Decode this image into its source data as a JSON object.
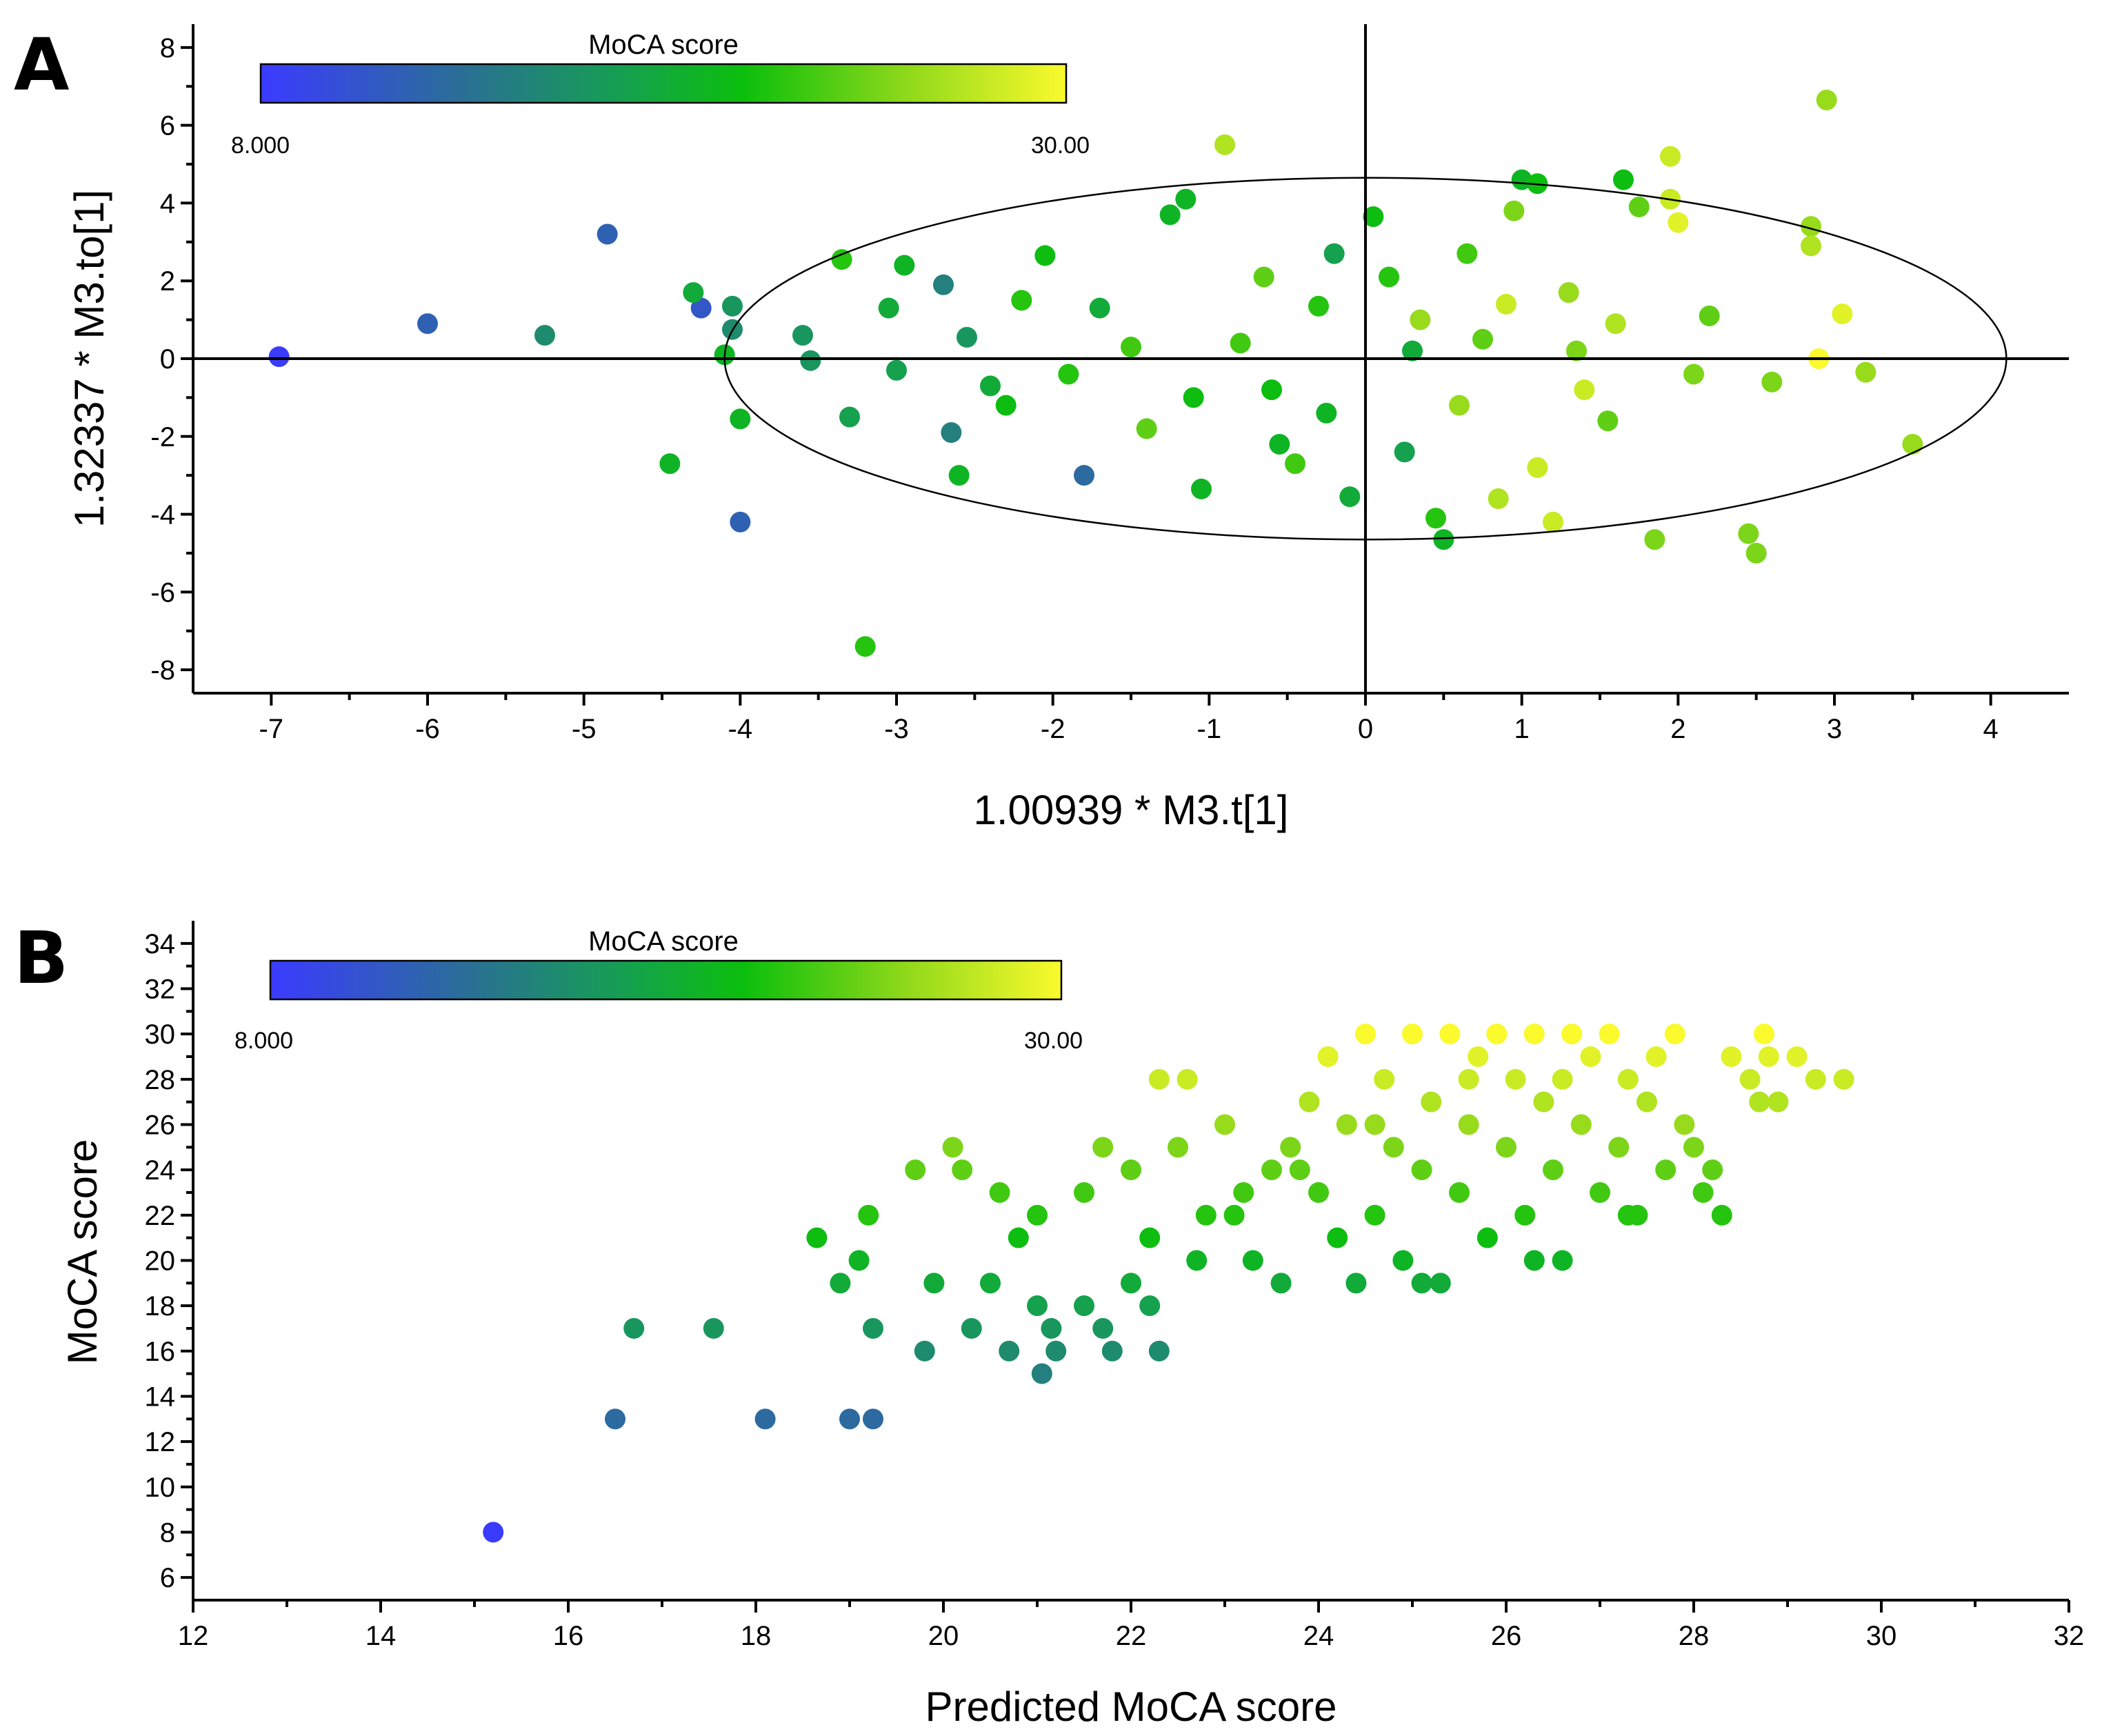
{
  "colors": {
    "low": "#3b3bff",
    "mid1": "#2a6f96",
    "mid2": "#15a050",
    "mid3": "#0cbf0c",
    "mid4": "#8ed81a",
    "high": "#fafa2c"
  },
  "chart_data": [
    {
      "panel": "A",
      "type": "scatter",
      "title": "",
      "xlabel": "1.00939 * M3.t[1]",
      "ylabel": "1.32337 * M3.to[1]",
      "xlim": [
        -7.5,
        4.5
      ],
      "ylim": [
        -8.6,
        8.6
      ],
      "xticks": [
        -7,
        -6,
        -5,
        -4,
        -3,
        -2,
        -1,
        0,
        1,
        2,
        3,
        4
      ],
      "yticks": [
        -8,
        -6,
        -4,
        -2,
        0,
        2,
        4,
        6,
        8
      ],
      "reference_lines": {
        "x": 0,
        "y": 0
      },
      "ellipse": {
        "cx": 0,
        "cy": 0,
        "rx": 4.1,
        "ry": 4.65
      },
      "colorbar": {
        "title": "MoCA score",
        "min_label": "8.000",
        "max_label": "30.00",
        "min": 8,
        "max": 30
      },
      "points": [
        {
          "x": -6.95,
          "y": 0.05,
          "c": 8
        },
        {
          "x": -6.0,
          "y": 0.9,
          "c": 12
        },
        {
          "x": -5.25,
          "y": 0.6,
          "c": 16
        },
        {
          "x": -4.85,
          "y": 3.2,
          "c": 12
        },
        {
          "x": -4.25,
          "y": 1.3,
          "c": 11
        },
        {
          "x": -4.3,
          "y": 1.7,
          "c": 19
        },
        {
          "x": -4.05,
          "y": 1.35,
          "c": 17
        },
        {
          "x": -4.05,
          "y": 0.75,
          "c": 16
        },
        {
          "x": -4.1,
          "y": 0.1,
          "c": 20
        },
        {
          "x": -4.0,
          "y": -1.55,
          "c": 20
        },
        {
          "x": -4.0,
          "y": -4.2,
          "c": 12
        },
        {
          "x": -4.45,
          "y": -2.7,
          "c": 20
        },
        {
          "x": -3.2,
          "y": -7.4,
          "c": 22
        },
        {
          "x": -3.6,
          "y": 0.6,
          "c": 17
        },
        {
          "x": -3.55,
          "y": -0.05,
          "c": 17
        },
        {
          "x": -3.35,
          "y": 2.55,
          "c": 22
        },
        {
          "x": -3.3,
          "y": -1.5,
          "c": 18
        },
        {
          "x": -3.05,
          "y": 1.3,
          "c": 19
        },
        {
          "x": -2.95,
          "y": 2.4,
          "c": 20
        },
        {
          "x": -2.7,
          "y": 1.9,
          "c": 15
        },
        {
          "x": -2.65,
          "y": -1.9,
          "c": 15
        },
        {
          "x": -2.6,
          "y": -3.0,
          "c": 20
        },
        {
          "x": -2.55,
          "y": 0.55,
          "c": 17
        },
        {
          "x": -2.4,
          "y": -0.7,
          "c": 19
        },
        {
          "x": -2.2,
          "y": 1.5,
          "c": 22
        },
        {
          "x": -2.05,
          "y": 2.65,
          "c": 21
        },
        {
          "x": -1.8,
          "y": -3.0,
          "c": 13
        },
        {
          "x": -1.7,
          "y": 1.3,
          "c": 19
        },
        {
          "x": -1.5,
          "y": 0.3,
          "c": 23
        },
        {
          "x": -1.25,
          "y": 3.7,
          "c": 20
        },
        {
          "x": -1.15,
          "y": 4.1,
          "c": 20
        },
        {
          "x": -1.1,
          "y": -1.0,
          "c": 21
        },
        {
          "x": -1.05,
          "y": -3.35,
          "c": 20
        },
        {
          "x": -0.9,
          "y": 5.5,
          "c": 27
        },
        {
          "x": -0.65,
          "y": 2.1,
          "c": 24
        },
        {
          "x": -0.55,
          "y": -2.2,
          "c": 20
        },
        {
          "x": -0.45,
          "y": -2.7,
          "c": 23
        },
        {
          "x": -0.3,
          "y": 1.35,
          "c": 22
        },
        {
          "x": -0.2,
          "y": 2.7,
          "c": 18
        },
        {
          "x": -0.1,
          "y": -3.55,
          "c": 19
        },
        {
          "x": 0.05,
          "y": 3.65,
          "c": 21
        },
        {
          "x": 0.15,
          "y": 2.1,
          "c": 22
        },
        {
          "x": 0.25,
          "y": -2.4,
          "c": 18
        },
        {
          "x": 0.35,
          "y": 1.0,
          "c": 26
        },
        {
          "x": 0.45,
          "y": -4.1,
          "c": 22
        },
        {
          "x": 0.5,
          "y": -4.65,
          "c": 20
        },
        {
          "x": 0.65,
          "y": 2.7,
          "c": 23
        },
        {
          "x": 0.75,
          "y": 0.5,
          "c": 24
        },
        {
          "x": 0.85,
          "y": -3.6,
          "c": 27
        },
        {
          "x": 0.95,
          "y": 3.8,
          "c": 25
        },
        {
          "x": 1.0,
          "y": 4.6,
          "c": 20
        },
        {
          "x": 1.1,
          "y": 4.5,
          "c": 21
        },
        {
          "x": 1.1,
          "y": -2.8,
          "c": 28
        },
        {
          "x": 1.2,
          "y": -4.2,
          "c": 28
        },
        {
          "x": 1.3,
          "y": 1.7,
          "c": 26
        },
        {
          "x": 1.35,
          "y": 0.2,
          "c": 25
        },
        {
          "x": 1.55,
          "y": -1.6,
          "c": 24
        },
        {
          "x": 1.65,
          "y": 4.6,
          "c": 21
        },
        {
          "x": 1.75,
          "y": 3.9,
          "c": 24
        },
        {
          "x": 1.85,
          "y": -4.65,
          "c": 25
        },
        {
          "x": 1.95,
          "y": 5.2,
          "c": 28
        },
        {
          "x": 1.95,
          "y": 4.1,
          "c": 28
        },
        {
          "x": 2.0,
          "y": 3.5,
          "c": 29
        },
        {
          "x": 2.1,
          "y": -0.4,
          "c": 25
        },
        {
          "x": 2.2,
          "y": 1.1,
          "c": 24
        },
        {
          "x": 2.45,
          "y": -4.5,
          "c": 25
        },
        {
          "x": 2.5,
          "y": -5.0,
          "c": 25
        },
        {
          "x": 2.6,
          "y": -0.6,
          "c": 25
        },
        {
          "x": 2.85,
          "y": 3.4,
          "c": 26
        },
        {
          "x": 2.85,
          "y": 2.9,
          "c": 27
        },
        {
          "x": 2.9,
          "y": 0.0,
          "c": 30
        },
        {
          "x": 2.95,
          "y": 6.65,
          "c": 26
        },
        {
          "x": 3.05,
          "y": 1.15,
          "c": 29
        },
        {
          "x": 3.2,
          "y": -0.35,
          "c": 26
        },
        {
          "x": 3.5,
          "y": -2.2,
          "c": 26
        },
        {
          "x": -0.8,
          "y": 0.4,
          "c": 23
        },
        {
          "x": -0.6,
          "y": -0.8,
          "c": 21
        },
        {
          "x": -1.9,
          "y": -0.4,
          "c": 22
        },
        {
          "x": -2.3,
          "y": -1.2,
          "c": 21
        },
        {
          "x": -1.4,
          "y": -1.8,
          "c": 24
        },
        {
          "x": 0.6,
          "y": -1.2,
          "c": 26
        },
        {
          "x": 0.9,
          "y": 1.4,
          "c": 28
        },
        {
          "x": 1.6,
          "y": 0.9,
          "c": 27
        },
        {
          "x": 1.4,
          "y": -0.8,
          "c": 28
        },
        {
          "x": 0.3,
          "y": 0.2,
          "c": 19
        },
        {
          "x": -0.25,
          "y": -1.4,
          "c": 20
        },
        {
          "x": -3.0,
          "y": -0.3,
          "c": 18
        }
      ]
    },
    {
      "panel": "B",
      "type": "scatter",
      "title": "",
      "xlabel": "Predicted MoCA score",
      "ylabel": "MoCA score",
      "xlim": [
        12,
        32
      ],
      "ylim": [
        5,
        35
      ],
      "xticks": [
        12,
        14,
        16,
        18,
        20,
        22,
        24,
        26,
        28,
        30,
        32
      ],
      "yticks": [
        6,
        8,
        10,
        12,
        14,
        16,
        18,
        20,
        22,
        24,
        26,
        28,
        30,
        32,
        34
      ],
      "colorbar": {
        "title": "MoCA score",
        "min_label": "8.000",
        "max_label": "30.00",
        "min": 8,
        "max": 30
      },
      "points": [
        {
          "x": 15.2,
          "y": 8
        },
        {
          "x": 16.5,
          "y": 13
        },
        {
          "x": 18.1,
          "y": 13
        },
        {
          "x": 19.0,
          "y": 13
        },
        {
          "x": 19.25,
          "y": 13
        },
        {
          "x": 16.7,
          "y": 17
        },
        {
          "x": 17.55,
          "y": 17
        },
        {
          "x": 19.8,
          "y": 16
        },
        {
          "x": 20.7,
          "y": 16
        },
        {
          "x": 21.05,
          "y": 15
        },
        {
          "x": 21.2,
          "y": 16
        },
        {
          "x": 21.8,
          "y": 16
        },
        {
          "x": 22.3,
          "y": 16
        },
        {
          "x": 19.25,
          "y": 17
        },
        {
          "x": 20.3,
          "y": 17
        },
        {
          "x": 21.15,
          "y": 17
        },
        {
          "x": 21.7,
          "y": 17
        },
        {
          "x": 18.65,
          "y": 21
        },
        {
          "x": 19.2,
          "y": 22
        },
        {
          "x": 19.1,
          "y": 20
        },
        {
          "x": 18.9,
          "y": 19
        },
        {
          "x": 19.9,
          "y": 19
        },
        {
          "x": 20.5,
          "y": 19
        },
        {
          "x": 21.0,
          "y": 18
        },
        {
          "x": 21.5,
          "y": 18
        },
        {
          "x": 22.2,
          "y": 18
        },
        {
          "x": 22.0,
          "y": 19
        },
        {
          "x": 19.7,
          "y": 24
        },
        {
          "x": 20.1,
          "y": 25
        },
        {
          "x": 20.2,
          "y": 24
        },
        {
          "x": 20.6,
          "y": 23
        },
        {
          "x": 20.8,
          "y": 21
        },
        {
          "x": 21.0,
          "y": 22
        },
        {
          "x": 21.5,
          "y": 23
        },
        {
          "x": 21.7,
          "y": 25
        },
        {
          "x": 22.0,
          "y": 24
        },
        {
          "x": 22.2,
          "y": 21
        },
        {
          "x": 22.5,
          "y": 25
        },
        {
          "x": 22.3,
          "y": 28
        },
        {
          "x": 22.6,
          "y": 28
        },
        {
          "x": 23.0,
          "y": 26
        },
        {
          "x": 23.1,
          "y": 22
        },
        {
          "x": 23.3,
          "y": 20
        },
        {
          "x": 23.5,
          "y": 24
        },
        {
          "x": 23.6,
          "y": 19
        },
        {
          "x": 23.7,
          "y": 25
        },
        {
          "x": 23.9,
          "y": 27
        },
        {
          "x": 24.0,
          "y": 23
        },
        {
          "x": 24.1,
          "y": 29
        },
        {
          "x": 24.3,
          "y": 26
        },
        {
          "x": 24.4,
          "y": 19
        },
        {
          "x": 24.5,
          "y": 30
        },
        {
          "x": 24.6,
          "y": 22
        },
        {
          "x": 24.7,
          "y": 28
        },
        {
          "x": 24.8,
          "y": 25
        },
        {
          "x": 24.9,
          "y": 20
        },
        {
          "x": 25.0,
          "y": 30
        },
        {
          "x": 25.1,
          "y": 24
        },
        {
          "x": 25.2,
          "y": 27
        },
        {
          "x": 25.3,
          "y": 19
        },
        {
          "x": 25.4,
          "y": 30
        },
        {
          "x": 25.5,
          "y": 23
        },
        {
          "x": 25.6,
          "y": 26
        },
        {
          "x": 25.7,
          "y": 29
        },
        {
          "x": 25.8,
          "y": 21
        },
        {
          "x": 25.9,
          "y": 30
        },
        {
          "x": 26.0,
          "y": 25
        },
        {
          "x": 26.1,
          "y": 28
        },
        {
          "x": 26.2,
          "y": 22
        },
        {
          "x": 26.3,
          "y": 30
        },
        {
          "x": 26.4,
          "y": 27
        },
        {
          "x": 26.5,
          "y": 24
        },
        {
          "x": 26.6,
          "y": 20
        },
        {
          "x": 26.7,
          "y": 30
        },
        {
          "x": 26.8,
          "y": 26
        },
        {
          "x": 26.9,
          "y": 29
        },
        {
          "x": 27.0,
          "y": 23
        },
        {
          "x": 27.1,
          "y": 30
        },
        {
          "x": 27.2,
          "y": 25
        },
        {
          "x": 27.3,
          "y": 28
        },
        {
          "x": 27.4,
          "y": 22
        },
        {
          "x": 27.5,
          "y": 27
        },
        {
          "x": 27.6,
          "y": 29
        },
        {
          "x": 27.7,
          "y": 24
        },
        {
          "x": 27.8,
          "y": 30
        },
        {
          "x": 27.9,
          "y": 26
        },
        {
          "x": 28.0,
          "y": 25
        },
        {
          "x": 28.1,
          "y": 23
        },
        {
          "x": 28.3,
          "y": 22
        },
        {
          "x": 28.2,
          "y": 24
        },
        {
          "x": 28.4,
          "y": 29
        },
        {
          "x": 28.6,
          "y": 28
        },
        {
          "x": 28.7,
          "y": 27
        },
        {
          "x": 28.9,
          "y": 27
        },
        {
          "x": 28.8,
          "y": 29
        },
        {
          "x": 29.1,
          "y": 29
        },
        {
          "x": 29.3,
          "y": 28
        },
        {
          "x": 29.6,
          "y": 28
        },
        {
          "x": 28.75,
          "y": 30
        },
        {
          "x": 27.3,
          "y": 22
        },
        {
          "x": 26.3,
          "y": 20
        },
        {
          "x": 25.1,
          "y": 19
        },
        {
          "x": 24.2,
          "y": 21
        },
        {
          "x": 23.2,
          "y": 23
        },
        {
          "x": 22.8,
          "y": 22
        },
        {
          "x": 22.7,
          "y": 20
        },
        {
          "x": 23.8,
          "y": 24
        },
        {
          "x": 24.6,
          "y": 26
        },
        {
          "x": 25.6,
          "y": 28
        },
        {
          "x": 26.6,
          "y": 28
        }
      ]
    }
  ]
}
